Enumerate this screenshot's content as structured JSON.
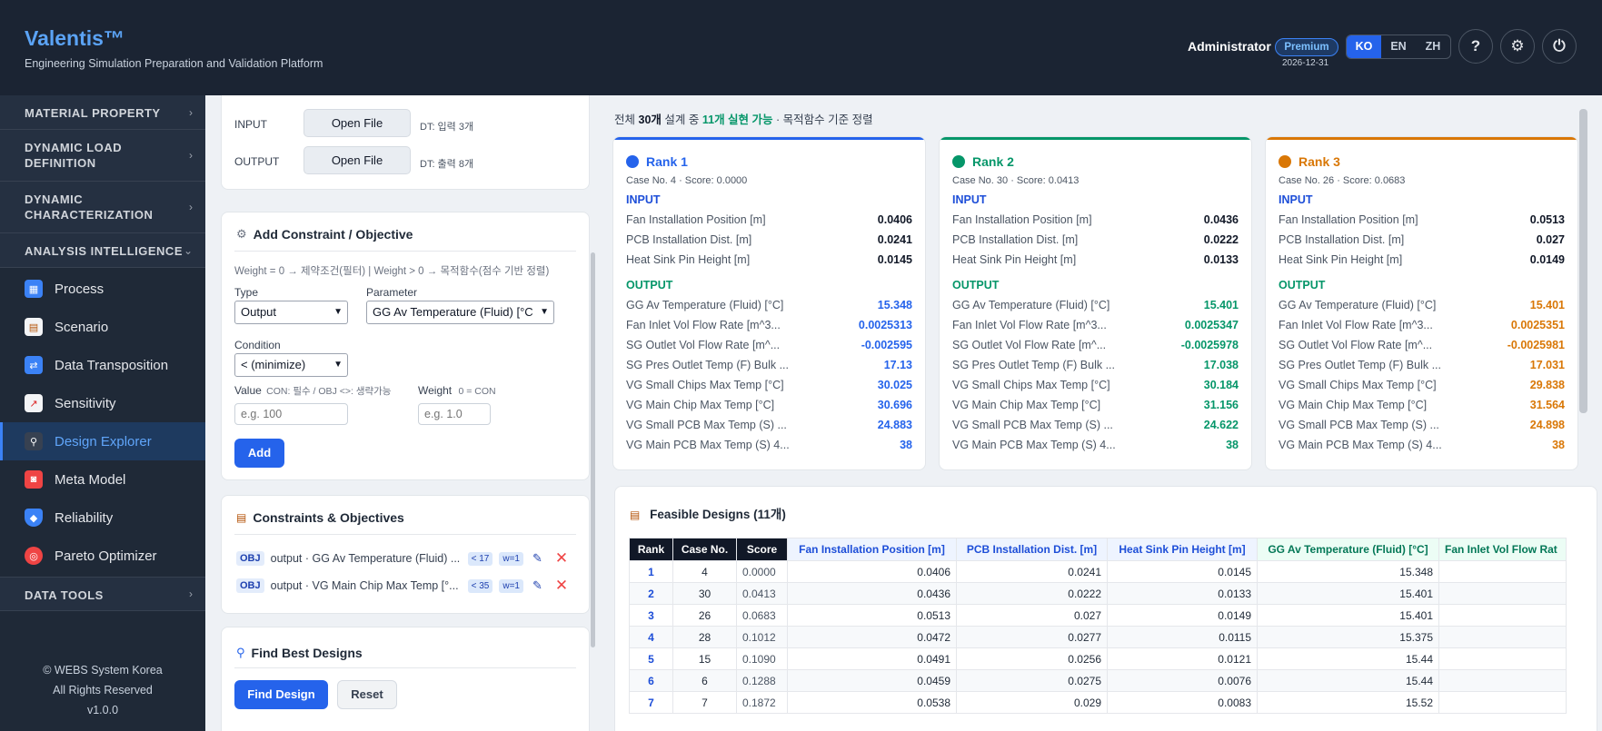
{
  "header": {
    "brand": "Valentis™",
    "subtitle": "Engineering Simulation Preparation and Validation Platform",
    "user": "Administrator",
    "badge": "Premium",
    "expiry": "2026-12-31",
    "languages": [
      "KO",
      "EN",
      "ZH"
    ],
    "active_language": "KO",
    "help_icon": "?",
    "settings_icon": "⚙",
    "power_icon": "⏻"
  },
  "sidebar": {
    "sections": [
      {
        "label": "MATERIAL PROPERTY"
      },
      {
        "label": "DYNAMIC LOAD\nDEFINITION"
      },
      {
        "label": "DYNAMIC\nCHARACTERIZATION"
      },
      {
        "label": "ANALYSIS INTELLIGENCE"
      },
      {
        "label": "DATA TOOLS"
      }
    ],
    "items": [
      {
        "label": "Process",
        "icon": "map-icon"
      },
      {
        "label": "Scenario",
        "icon": "clipboard-icon"
      },
      {
        "label": "Data Transposition",
        "icon": "swap-icon"
      },
      {
        "label": "Sensitivity",
        "icon": "chart-icon"
      },
      {
        "label": "Design Explorer",
        "icon": "microscope-icon"
      },
      {
        "label": "Meta Model",
        "icon": "robot-icon"
      },
      {
        "label": "Reliability",
        "icon": "shield-icon"
      },
      {
        "label": "Pareto Optimizer",
        "icon": "target-icon"
      }
    ],
    "active_item": "Design Explorer",
    "footer": [
      "© WEBS System Korea",
      "All Rights Reserved",
      "v1.0.0"
    ]
  },
  "files": {
    "input_label": "INPUT",
    "output_label": "OUTPUT",
    "open_label": "Open File",
    "input_info": "DT: 입력 3개",
    "output_info": "DT: 출력 8개"
  },
  "constraint_form": {
    "title": "Add Constraint / Objective",
    "hint": "Weight = 0 → 제약조건(필터) | Weight > 0 → 목적함수(점수 기반 정렬)",
    "type_label": "Type",
    "type_value": "Output",
    "parameter_label": "Parameter",
    "parameter_value": "GG Av Temperature (Fluid) [°C",
    "condition_label": "Condition",
    "condition_value": "< (minimize)",
    "value_label": "Value",
    "value_hint": "CON: 필수 / OBJ <>: 생략가능",
    "value_placeholder": "e.g. 100",
    "weight_label": "Weight",
    "weight_hint": "0 = CON",
    "weight_placeholder": "e.g. 1.0",
    "add_label": "Add"
  },
  "constraints": {
    "title": "Constraints & Objectives",
    "items": [
      {
        "tag": "OBJ",
        "text": "output · GG Av Temperature (Fluid) ...",
        "cond": "< 17",
        "weight": "w=1"
      },
      {
        "tag": "OBJ",
        "text": "output · VG Main Chip Max Temp [°...",
        "cond": "< 35",
        "weight": "w=1"
      }
    ]
  },
  "find": {
    "title": "Find Best Designs",
    "find_label": "Find Design",
    "reset_label": "Reset"
  },
  "summary": {
    "prefix": "전체",
    "total": "30개",
    "middle": "설계 중",
    "feasible": "11개 실현 가능",
    "suffix": "· 목적함수 기준 정렬"
  },
  "ranks": [
    {
      "title": "Rank 1",
      "color": "#2563eb",
      "case": "Case No. 4 · Score: 0.0000",
      "input_label": "INPUT",
      "output_label": "OUTPUT",
      "inputs": [
        [
          "Fan Installation Position [m]",
          "0.0406"
        ],
        [
          "PCB Installation Dist. [m]",
          "0.0241"
        ],
        [
          "Heat Sink Pin Height [m]",
          "0.0145"
        ]
      ],
      "outputs": [
        [
          "GG Av Temperature (Fluid) [°C]",
          "15.348"
        ],
        [
          "Fan Inlet Vol Flow Rate [m^3...",
          "0.0025313"
        ],
        [
          "SG Outlet Vol Flow Rate [m^...",
          "-0.002595"
        ],
        [
          "SG Pres Outlet Temp (F) Bulk ...",
          "17.13"
        ],
        [
          "VG Small Chips Max Temp [°C]",
          "30.025"
        ],
        [
          "VG Main Chip Max Temp [°C]",
          "30.696"
        ],
        [
          "VG Small PCB Max Temp (S) ...",
          "24.883"
        ],
        [
          "VG Main PCB Max Temp (S) 4...",
          "38"
        ]
      ]
    },
    {
      "title": "Rank 2",
      "color": "#059669",
      "case": "Case No. 30 · Score: 0.0413",
      "input_label": "INPUT",
      "output_label": "OUTPUT",
      "inputs": [
        [
          "Fan Installation Position [m]",
          "0.0436"
        ],
        [
          "PCB Installation Dist. [m]",
          "0.0222"
        ],
        [
          "Heat Sink Pin Height [m]",
          "0.0133"
        ]
      ],
      "outputs": [
        [
          "GG Av Temperature (Fluid) [°C]",
          "15.401"
        ],
        [
          "Fan Inlet Vol Flow Rate [m^3...",
          "0.0025347"
        ],
        [
          "SG Outlet Vol Flow Rate [m^...",
          "-0.0025978"
        ],
        [
          "SG Pres Outlet Temp (F) Bulk ...",
          "17.038"
        ],
        [
          "VG Small Chips Max Temp [°C]",
          "30.184"
        ],
        [
          "VG Main Chip Max Temp [°C]",
          "31.156"
        ],
        [
          "VG Small PCB Max Temp (S) ...",
          "24.622"
        ],
        [
          "VG Main PCB Max Temp (S) 4...",
          "38"
        ]
      ]
    },
    {
      "title": "Rank 3",
      "color": "#d97706",
      "case": "Case No. 26 · Score: 0.0683",
      "input_label": "INPUT",
      "output_label": "OUTPUT",
      "inputs": [
        [
          "Fan Installation Position [m]",
          "0.0513"
        ],
        [
          "PCB Installation Dist. [m]",
          "0.027"
        ],
        [
          "Heat Sink Pin Height [m]",
          "0.0149"
        ]
      ],
      "outputs": [
        [
          "GG Av Temperature (Fluid) [°C]",
          "15.401"
        ],
        [
          "Fan Inlet Vol Flow Rate [m^3...",
          "0.0025351"
        ],
        [
          "SG Outlet Vol Flow Rate [m^...",
          "-0.0025981"
        ],
        [
          "SG Pres Outlet Temp (F) Bulk ...",
          "17.031"
        ],
        [
          "VG Small Chips Max Temp [°C]",
          "29.838"
        ],
        [
          "VG Main Chip Max Temp [°C]",
          "31.564"
        ],
        [
          "VG Small PCB Max Temp (S) ...",
          "24.898"
        ],
        [
          "VG Main PCB Max Temp (S) 4...",
          "38"
        ]
      ]
    }
  ],
  "feasible": {
    "title": "Feasible Designs (11개)",
    "columns": [
      "Rank",
      "Case No.",
      "Score",
      "Fan Installation Position [m]",
      "PCB Installation Dist. [m]",
      "Heat Sink Pin Height [m]",
      "GG Av Temperature (Fluid) [°C]",
      "Fan Inlet Vol Flow Rat"
    ],
    "rows": [
      [
        "1",
        "4",
        "0.0000",
        "0.0406",
        "0.0241",
        "0.0145",
        "15.348",
        ""
      ],
      [
        "2",
        "30",
        "0.0413",
        "0.0436",
        "0.0222",
        "0.0133",
        "15.401",
        ""
      ],
      [
        "3",
        "26",
        "0.0683",
        "0.0513",
        "0.027",
        "0.0149",
        "15.401",
        ""
      ],
      [
        "4",
        "28",
        "0.1012",
        "0.0472",
        "0.0277",
        "0.0115",
        "15.375",
        ""
      ],
      [
        "5",
        "15",
        "0.1090",
        "0.0491",
        "0.0256",
        "0.0121",
        "15.44",
        ""
      ],
      [
        "6",
        "6",
        "0.1288",
        "0.0459",
        "0.0275",
        "0.0076",
        "15.44",
        ""
      ],
      [
        "7",
        "7",
        "0.1872",
        "0.0538",
        "0.029",
        "0.0083",
        "15.52",
        ""
      ]
    ]
  }
}
